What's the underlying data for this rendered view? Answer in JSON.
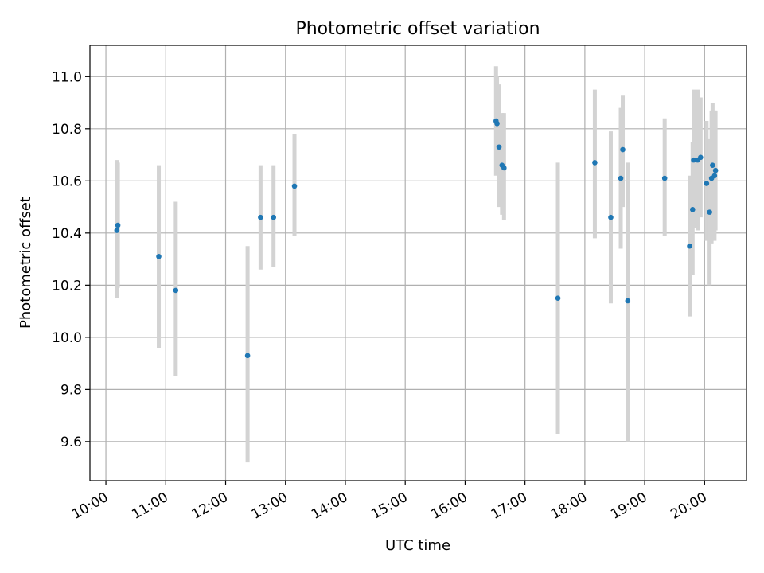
{
  "chart_data": {
    "type": "scatter",
    "title": "Photometric offset variation",
    "xlabel": "UTC time",
    "ylabel": "Photometric offset",
    "x_tick_labels": [
      "10:00",
      "11:00",
      "12:00",
      "13:00",
      "14:00",
      "15:00",
      "16:00",
      "17:00",
      "18:00",
      "19:00",
      "20:00"
    ],
    "y_tick_labels": [
      "9.6",
      "9.8",
      "10.0",
      "10.2",
      "10.4",
      "10.6",
      "10.8",
      "11.0"
    ],
    "xlim": [
      "09:44",
      "20:42"
    ],
    "ylim": [
      9.45,
      11.12
    ],
    "grid": true,
    "colors": {
      "points": "#1f77b4",
      "error_bars": "#d3d3d3",
      "grid": "#b0b0b0"
    },
    "series": [
      {
        "points": [
          {
            "x": "10:11",
            "y": 10.41,
            "yerr_low": 10.15,
            "yerr_high": 10.68
          },
          {
            "x": "10:12",
            "y": 10.43,
            "yerr_low": 10.19,
            "yerr_high": 10.67
          },
          {
            "x": "10:53",
            "y": 10.31,
            "yerr_low": 9.96,
            "yerr_high": 10.66
          },
          {
            "x": "11:10",
            "y": 10.18,
            "yerr_low": 9.85,
            "yerr_high": 10.52
          },
          {
            "x": "12:22",
            "y": 9.93,
            "yerr_low": 9.52,
            "yerr_high": 10.35
          },
          {
            "x": "12:35",
            "y": 10.46,
            "yerr_low": 10.26,
            "yerr_high": 10.66
          },
          {
            "x": "12:48",
            "y": 10.46,
            "yerr_low": 10.27,
            "yerr_high": 10.66
          },
          {
            "x": "13:09",
            "y": 10.58,
            "yerr_low": 10.39,
            "yerr_high": 10.78
          },
          {
            "x": "16:31",
            "y": 10.83,
            "yerr_low": 10.62,
            "yerr_high": 11.04
          },
          {
            "x": "16:32",
            "y": 10.82,
            "yerr_low": 10.63,
            "yerr_high": 11.0
          },
          {
            "x": "16:34",
            "y": 10.73,
            "yerr_low": 10.5,
            "yerr_high": 10.97
          },
          {
            "x": "16:37",
            "y": 10.66,
            "yerr_low": 10.47,
            "yerr_high": 10.86
          },
          {
            "x": "16:39",
            "y": 10.65,
            "yerr_low": 10.45,
            "yerr_high": 10.86
          },
          {
            "x": "17:33",
            "y": 10.15,
            "yerr_low": 9.63,
            "yerr_high": 10.67
          },
          {
            "x": "18:10",
            "y": 10.67,
            "yerr_low": 10.38,
            "yerr_high": 10.95
          },
          {
            "x": "18:26",
            "y": 10.46,
            "yerr_low": 10.13,
            "yerr_high": 10.79
          },
          {
            "x": "18:36",
            "y": 10.61,
            "yerr_low": 10.34,
            "yerr_high": 10.88
          },
          {
            "x": "18:38",
            "y": 10.72,
            "yerr_low": 10.5,
            "yerr_high": 10.93
          },
          {
            "x": "18:43",
            "y": 10.14,
            "yerr_low": 9.6,
            "yerr_high": 10.67
          },
          {
            "x": "19:20",
            "y": 10.61,
            "yerr_low": 10.39,
            "yerr_high": 10.84
          },
          {
            "x": "19:45",
            "y": 10.35,
            "yerr_low": 10.08,
            "yerr_high": 10.62
          },
          {
            "x": "19:48",
            "y": 10.49,
            "yerr_low": 10.24,
            "yerr_high": 10.75
          },
          {
            "x": "19:49",
            "y": 10.68,
            "yerr_low": 10.42,
            "yerr_high": 10.95
          },
          {
            "x": "19:53",
            "y": 10.68,
            "yerr_low": 10.41,
            "yerr_high": 10.95
          },
          {
            "x": "19:56",
            "y": 10.69,
            "yerr_low": 10.46,
            "yerr_high": 10.92
          },
          {
            "x": "20:02",
            "y": 10.59,
            "yerr_low": 10.37,
            "yerr_high": 10.83
          },
          {
            "x": "20:05",
            "y": 10.48,
            "yerr_low": 10.2,
            "yerr_high": 10.76
          },
          {
            "x": "20:07",
            "y": 10.61,
            "yerr_low": 10.36,
            "yerr_high": 10.87
          },
          {
            "x": "20:08",
            "y": 10.66,
            "yerr_low": 10.43,
            "yerr_high": 10.9
          },
          {
            "x": "20:10",
            "y": 10.62,
            "yerr_low": 10.37,
            "yerr_high": 10.87
          },
          {
            "x": "20:11",
            "y": 10.64,
            "yerr_low": 10.41,
            "yerr_high": 10.87
          }
        ]
      }
    ]
  }
}
